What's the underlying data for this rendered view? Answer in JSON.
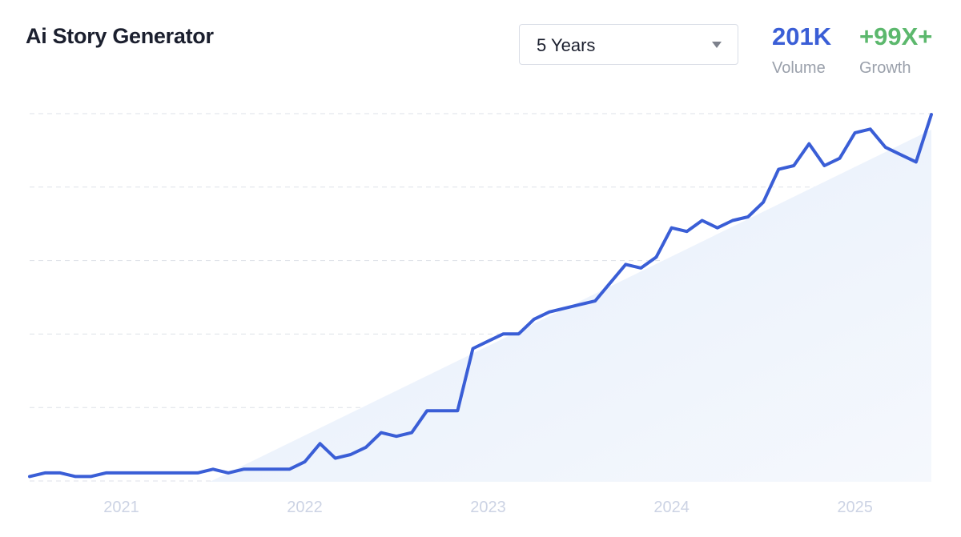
{
  "header": {
    "title": "Ai Story Generator",
    "range_selected": "5 Years",
    "volume_value": "201K",
    "volume_label": "Volume",
    "growth_value": "+99X+",
    "growth_label": "Growth"
  },
  "colors": {
    "line": "#3a5ed6",
    "volume": "#3a5ed6",
    "growth": "#5cb86d",
    "fill": "#e9f0fb",
    "grid": "#dde1e8",
    "tick": "#ccd3e4"
  },
  "icons": {
    "range_caret": "caret-down-icon"
  },
  "chart_data": {
    "type": "area",
    "title": "",
    "xlabel": "",
    "ylabel": "",
    "x_tick_labels": [
      "2021",
      "2022",
      "2023",
      "2024",
      "2025"
    ],
    "x_range": [
      "2020-07",
      "2025-06"
    ],
    "y_range": [
      0,
      100
    ],
    "grid": "horizontal dashed",
    "series": [
      {
        "x": [
          "2020-07",
          "2020-08",
          "2020-09",
          "2020-10",
          "2020-11",
          "2020-12",
          "2021-01",
          "2021-02",
          "2021-03",
          "2021-04",
          "2021-05",
          "2021-06",
          "2021-07",
          "2021-08",
          "2021-09",
          "2021-10",
          "2021-11",
          "2021-12",
          "2022-01",
          "2022-02",
          "2022-03",
          "2022-04",
          "2022-05",
          "2022-06",
          "2022-07",
          "2022-08",
          "2022-09",
          "2022-10",
          "2022-11",
          "2022-12",
          "2023-01",
          "2023-02",
          "2023-03",
          "2023-04",
          "2023-05",
          "2023-06",
          "2023-07",
          "2023-08",
          "2023-09",
          "2023-10",
          "2023-11",
          "2023-12",
          "2024-01",
          "2024-02",
          "2024-03",
          "2024-04",
          "2024-05",
          "2024-06",
          "2024-07",
          "2024-08",
          "2024-09",
          "2024-10",
          "2024-11",
          "2024-12",
          "2025-01",
          "2025-02",
          "2025-03",
          "2025-04",
          "2025-05",
          "2025-06"
        ],
        "values": [
          1,
          2,
          2,
          1,
          1,
          2,
          2,
          2,
          2,
          2,
          2,
          2,
          3,
          2,
          3,
          3,
          3,
          3,
          5,
          10,
          6,
          7,
          9,
          13,
          12,
          13,
          19,
          19,
          19,
          36,
          38,
          40,
          40,
          44,
          46,
          47,
          48,
          49,
          54,
          59,
          58,
          61,
          69,
          68,
          71,
          69,
          71,
          72,
          76,
          85,
          86,
          92,
          86,
          88,
          95,
          96,
          91,
          89,
          87,
          100
        ]
      }
    ]
  }
}
